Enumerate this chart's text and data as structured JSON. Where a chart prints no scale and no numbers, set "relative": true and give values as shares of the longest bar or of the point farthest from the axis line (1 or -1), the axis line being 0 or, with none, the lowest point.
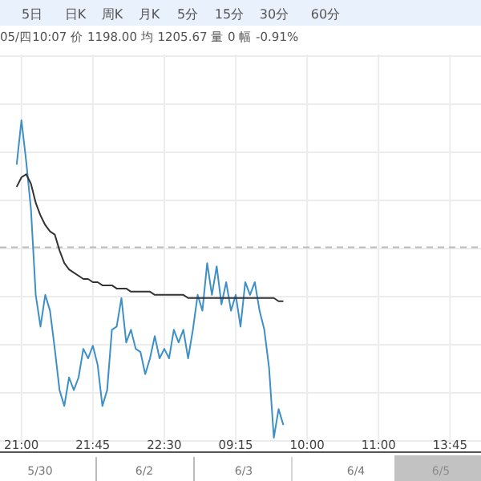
{
  "chart_data": {
    "type": "line",
    "relative": true,
    "subtitle": "05/四10:07 价 1198.00 均 1205.67 量 0 幅 -0.91%",
    "annotations": [
      "5日",
      "日K",
      "周K",
      "月K",
      "5分",
      "15分",
      "30分",
      "60分",
      "5/30",
      "6/2",
      "6/3",
      "6/4",
      "6/5"
    ],
    "categories": [
      null,
      null,
      null,
      null,
      "21:00",
      null,
      null,
      null,
      null,
      null,
      null,
      null,
      null,
      null,
      null,
      null,
      null,
      null,
      null,
      "21:45",
      null,
      null,
      null,
      null,
      null,
      null,
      null,
      null,
      null,
      null,
      null,
      null,
      null,
      null,
      "22:30",
      null,
      null,
      null,
      null,
      null,
      null,
      null,
      null,
      null,
      null,
      null,
      null,
      null,
      null,
      "09:15",
      null,
      null,
      null,
      null,
      null,
      null,
      null,
      null,
      null,
      null,
      null,
      null,
      null,
      null,
      "10:00",
      null,
      null,
      null,
      null,
      null,
      null,
      null,
      null,
      null,
      null,
      null,
      null,
      null,
      null,
      "11:00",
      null,
      null,
      null,
      null,
      null,
      null,
      null,
      null,
      null,
      null,
      null,
      null,
      null,
      null,
      "13:45",
      null,
      null,
      null,
      null,
      null,
      null
    ],
    "grid": true,
    "marker": "none",
    "line_style": "solid",
    "ref_lines": [
      {
        "axis": "y",
        "value": 0.6,
        "color": "#bbbbbb",
        "line_style": "dashed"
      }
    ],
    "series": [
      {
        "color": "#3d8fc6",
        "values": [
          null,
          null,
          null,
          0.86,
          1.0,
          0.87,
          0.72,
          0.45,
          0.35,
          0.45,
          0.4,
          0.28,
          0.15,
          0.1,
          0.19,
          0.15,
          0.19,
          0.28,
          0.25,
          0.29,
          0.23,
          0.1,
          0.15,
          0.34,
          0.35,
          0.44,
          0.3,
          0.34,
          0.28,
          0.27,
          0.2,
          0.25,
          0.32,
          0.25,
          0.28,
          0.25,
          0.34,
          0.3,
          0.34,
          0.25,
          0.34,
          0.45,
          0.4,
          0.55,
          0.45,
          0.54,
          0.42,
          0.49,
          0.4,
          0.45,
          0.35,
          0.49,
          0.45,
          0.49,
          0.4,
          0.34,
          0.22,
          0.0,
          0.09,
          0.04,
          null,
          null,
          null,
          null,
          null,
          null,
          null,
          null,
          null,
          null,
          null,
          null,
          null,
          null,
          null,
          null,
          null,
          null,
          null,
          null,
          null,
          null,
          null,
          null,
          null,
          null,
          null,
          null,
          null,
          null,
          null,
          null,
          null,
          null,
          null,
          null,
          null,
          null,
          null,
          null,
          null
        ]
      },
      {
        "color": "#333333",
        "values": [
          null,
          null,
          null,
          0.79,
          0.82,
          0.83,
          0.8,
          0.74,
          0.7,
          0.67,
          0.65,
          0.64,
          0.59,
          0.55,
          0.53,
          0.52,
          0.51,
          0.5,
          0.5,
          0.49,
          0.49,
          0.48,
          0.48,
          0.48,
          0.47,
          0.47,
          0.47,
          0.46,
          0.46,
          0.46,
          0.46,
          0.46,
          0.45,
          0.45,
          0.45,
          0.45,
          0.45,
          0.45,
          0.45,
          0.44,
          0.44,
          0.44,
          0.44,
          0.44,
          0.44,
          0.44,
          0.44,
          0.44,
          0.44,
          0.44,
          0.44,
          0.44,
          0.44,
          0.44,
          0.44,
          0.44,
          0.44,
          0.44,
          0.43,
          0.43,
          null,
          null,
          null,
          null,
          null,
          null,
          null,
          null,
          null,
          null,
          null,
          null,
          null,
          null,
          null,
          null,
          null,
          null,
          null,
          null,
          null,
          null,
          null,
          null,
          null,
          null,
          null,
          null,
          null,
          null,
          null,
          null,
          null,
          null,
          null,
          null,
          null,
          null,
          null,
          null,
          null
        ]
      }
    ]
  }
}
